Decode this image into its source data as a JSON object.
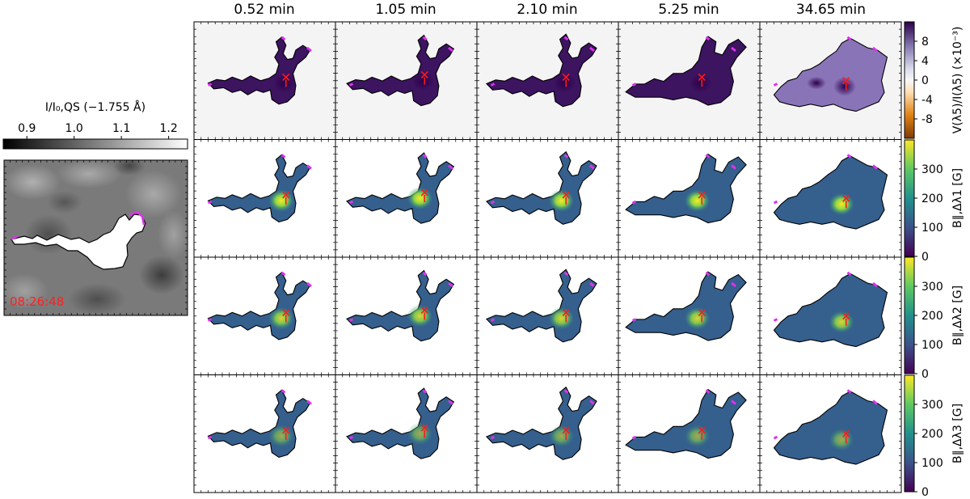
{
  "colors": {
    "contour": "#000000",
    "contour_edge": "#dd33ee",
    "marker": "#ff1a1a",
    "timestamp": "#ff2020",
    "panel_bg_stokes": "#f4f4f4",
    "panel_bg_field": "#ffffff"
  },
  "context_panel": {
    "colorbar_label": "I/I₀,QS (−1.755 Å)",
    "colorbar_ticks": [
      0.9,
      1.0,
      1.1,
      1.2
    ],
    "colorbar_range": [
      0.85,
      1.24
    ],
    "timestamp": "08:26:48"
  },
  "chart_data": {
    "type": "heatmap",
    "column_titles": [
      "0.52 min",
      "1.05 min",
      "2.10 min",
      "5.25 min",
      "34.65 min"
    ],
    "rows": [
      {
        "quantity": "V(λ5)/I(λ5) (×10⁻³)",
        "colormap": "PuOr",
        "range": [
          -12,
          12
        ],
        "ticks": [
          8,
          4,
          0,
          -4,
          -8
        ],
        "tick_labels": [
          "8",
          "4",
          "0",
          "-4",
          "-8"
        ]
      },
      {
        "quantity": "B∥,Δλ1 [G]",
        "colormap": "viridis",
        "range": [
          0,
          400
        ],
        "ticks": [
          300,
          200,
          100,
          0
        ],
        "tick_labels": [
          "300",
          "200",
          "100",
          "0"
        ]
      },
      {
        "quantity": "B∥,Δλ2 [G]",
        "colormap": "viridis",
        "range": [
          0,
          400
        ],
        "ticks": [
          300,
          200,
          100,
          0
        ],
        "tick_labels": [
          "300",
          "200",
          "100",
          "0"
        ]
      },
      {
        "quantity": "B∥,Δλ3 [G]",
        "colormap": "viridis",
        "range": [
          0,
          400
        ],
        "ticks": [
          300,
          200,
          100,
          0
        ],
        "tick_labels": [
          "300",
          "200",
          "100",
          "0"
        ]
      }
    ],
    "grid": false
  }
}
